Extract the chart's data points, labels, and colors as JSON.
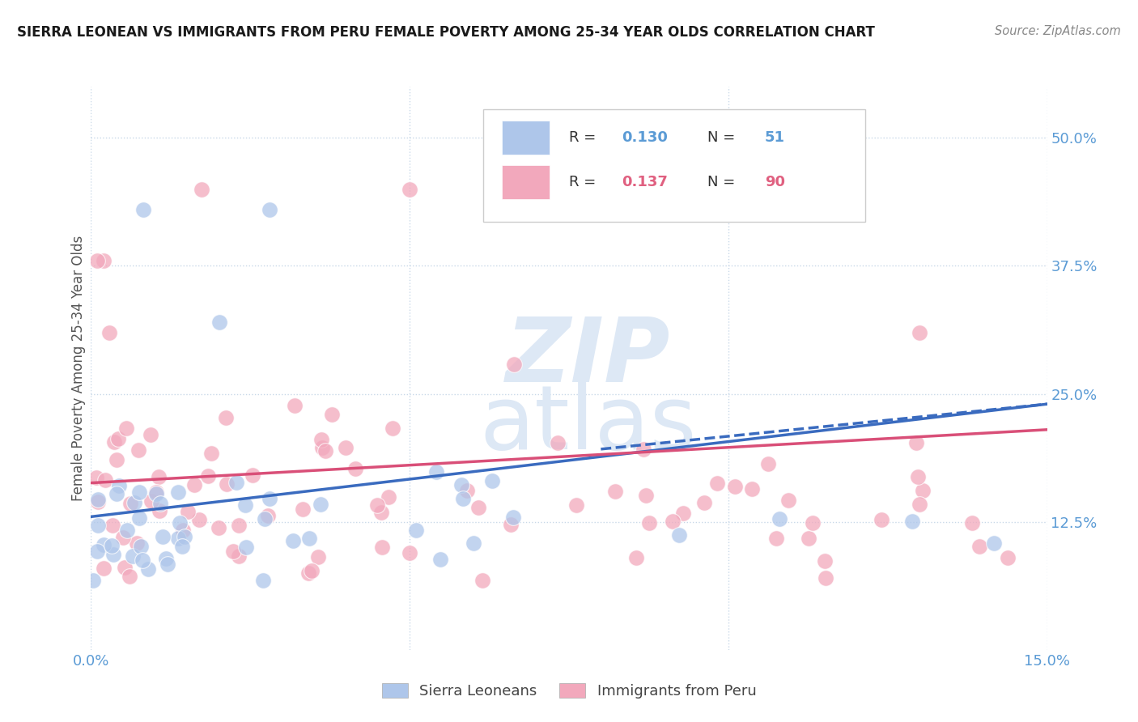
{
  "title": "SIERRA LEONEAN VS IMMIGRANTS FROM PERU FEMALE POVERTY AMONG 25-34 YEAR OLDS CORRELATION CHART",
  "source": "Source: ZipAtlas.com",
  "ylabel": "Female Poverty Among 25-34 Year Olds",
  "xlim": [
    0.0,
    0.15
  ],
  "ylim": [
    0.0,
    0.55
  ],
  "legend_R1": "0.130",
  "legend_N1": "51",
  "legend_R2": "0.137",
  "legend_N2": "90",
  "sierra_color": "#aec6ea",
  "peru_color": "#f2a8bc",
  "sierra_line_color": "#3a6bbf",
  "peru_line_color": "#d94f78",
  "watermark_color": "#dde8f5",
  "background_color": "#ffffff",
  "grid_color": "#c8d8e8",
  "tick_color": "#5b9bd5",
  "title_color": "#1a1a1a",
  "ylabel_color": "#555555",
  "legend_text_color": "#333333",
  "source_color": "#888888"
}
